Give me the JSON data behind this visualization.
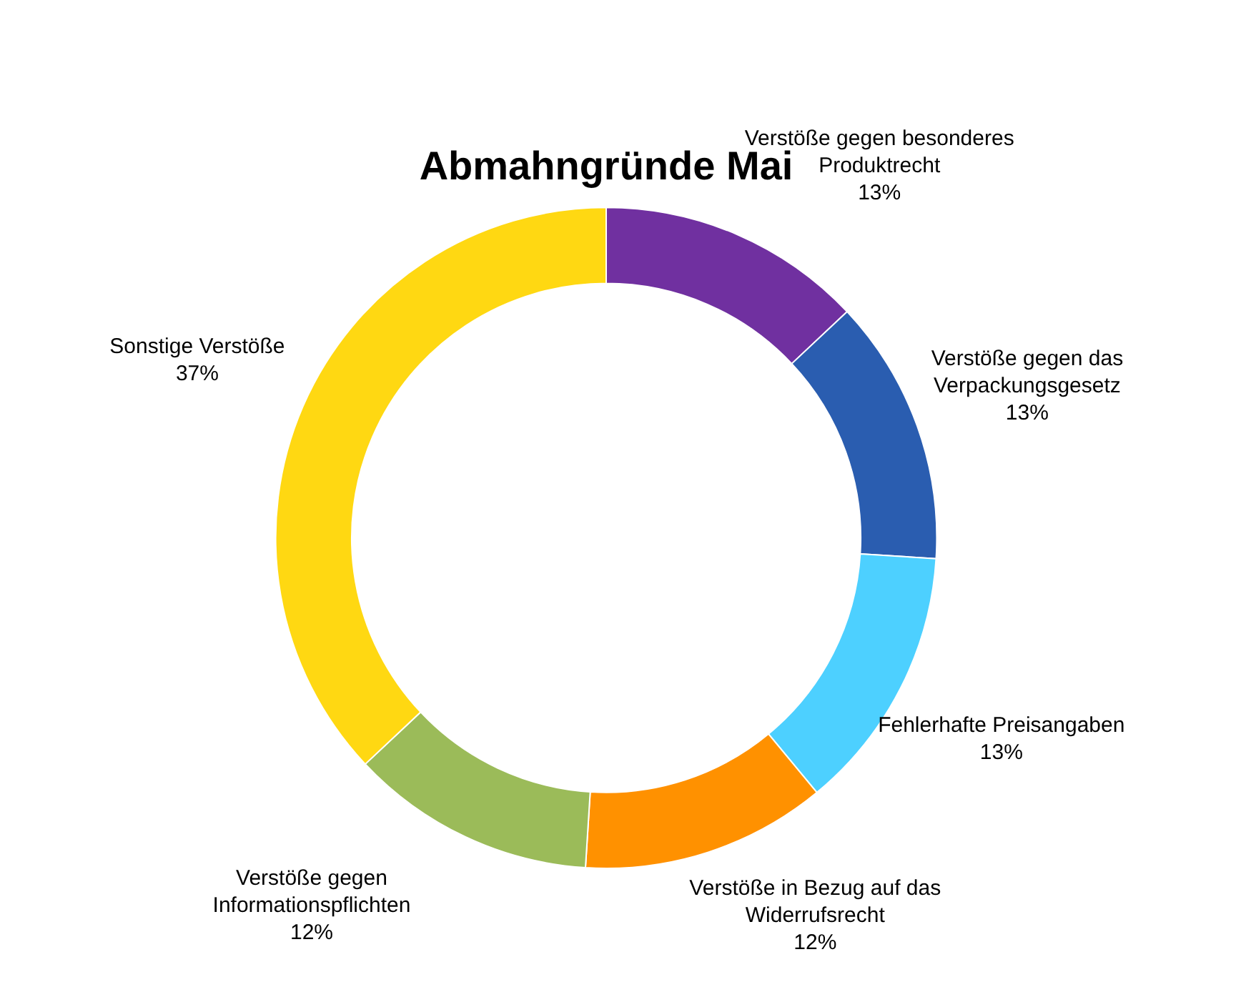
{
  "chart_data": {
    "type": "donut",
    "title": "Abmahngründe Mai",
    "categories": [
      "Verstöße gegen besonderes Produktrecht",
      "Verstöße gegen das Verpackungsgesetz",
      "Fehlerhafte Preisangaben",
      "Verstöße in Bezug auf das Widerrufsrecht",
      "Verstöße gegen Informationspflichten",
      "Sonstige Verstöße"
    ],
    "values": [
      13,
      13,
      13,
      12,
      12,
      37
    ],
    "colors": [
      "#7030a0",
      "#2a5db0",
      "#4dd0ff",
      "#ff9100",
      "#9bbb59",
      "#ffd812"
    ],
    "value_labels": [
      "13%",
      "13%",
      "13%",
      "12%",
      "12%",
      "37%"
    ],
    "legend": false
  }
}
